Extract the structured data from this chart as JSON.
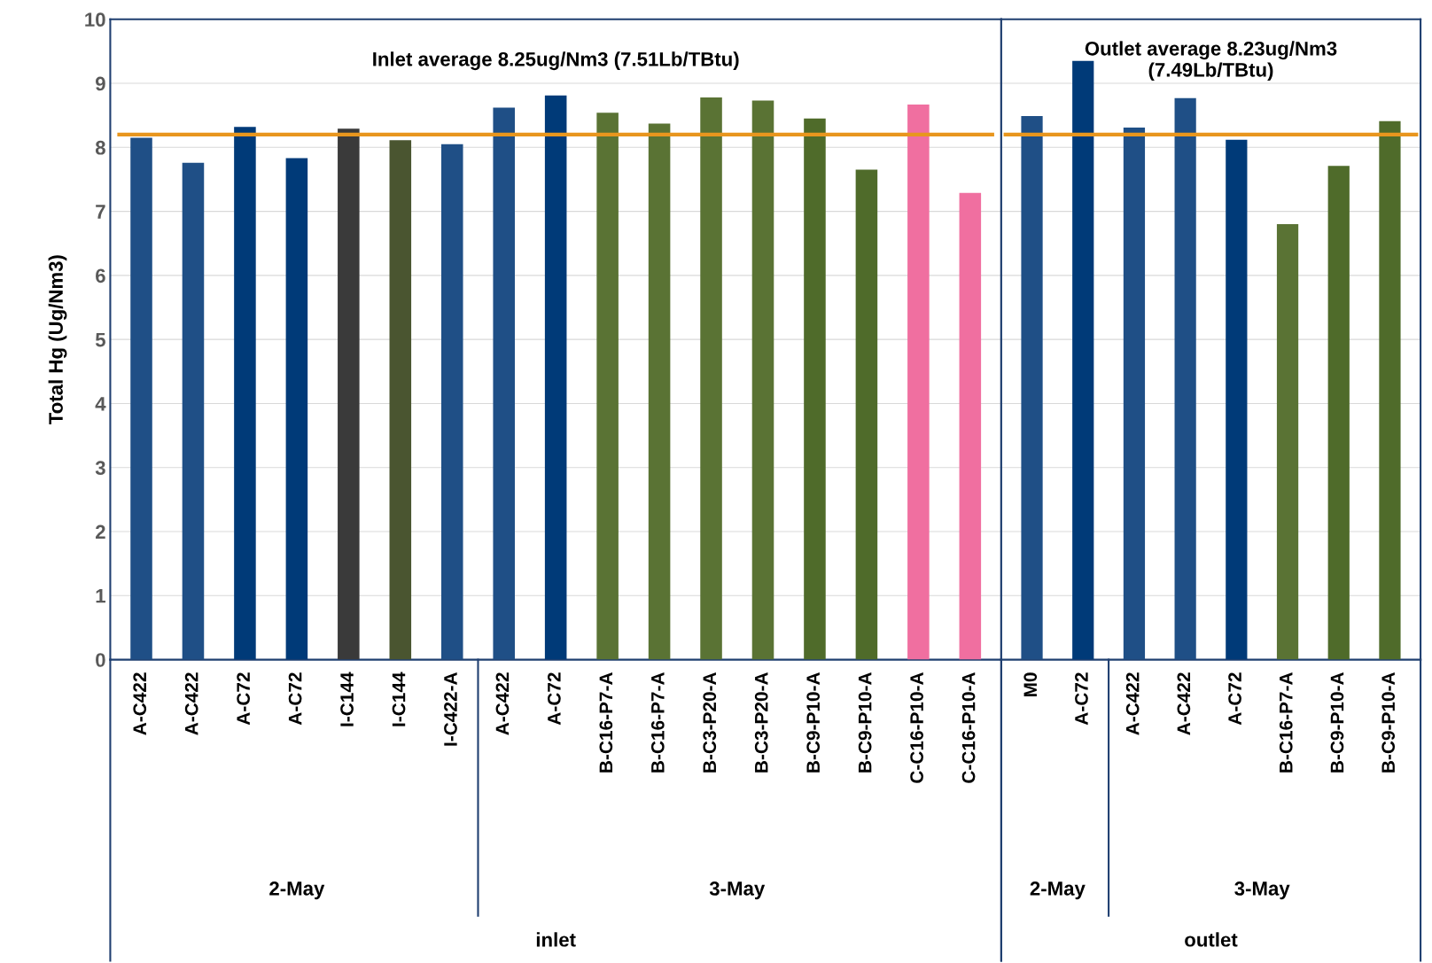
{
  "chart_data": [
    {
      "type": "bar",
      "ylabel": "Total Hg (Ug/Nm3)",
      "categories": [
        "A-C422",
        "A-C422",
        "A-C72",
        "A-C72",
        "I-C144",
        "I-C144",
        "I-C422-A",
        "A-C422",
        "A-C72",
        "B-C16-P7-A",
        "B-C16-P7-A",
        "B-C3-P20-A",
        "B-C3-P20-A",
        "B-C9-P10-A",
        "B-C9-P10-A",
        "C-C16-P10-A",
        "C-C16-P10-A"
      ],
      "values": [
        8.15,
        7.76,
        8.32,
        7.83,
        8.29,
        8.11,
        8.05,
        8.62,
        8.81,
        8.54,
        8.37,
        8.78,
        8.73,
        8.45,
        7.65,
        8.67,
        7.29
      ],
      "colors": [
        "#1f4f86",
        "#1f4f86",
        "#003a78",
        "#003a78",
        "#3a3a3a",
        "#4a5530",
        "#1f4f86",
        "#1f4f86",
        "#003a78",
        "#5a7334",
        "#5a7334",
        "#5a7334",
        "#5a7334",
        "#4f6b2a",
        "#4f6b2a",
        "#f06fa0",
        "#f06fa0"
      ],
      "ylim": [
        0,
        10
      ],
      "yticks": [
        0,
        1,
        2,
        3,
        4,
        5,
        6,
        7,
        8,
        9,
        10
      ],
      "grid": "y",
      "ref_lines": [
        {
          "axis": "y",
          "value": 8.2,
          "color": "#e8961e"
        }
      ],
      "annotations": [
        "Inlet average 8.25ug/Nm3 (7.51Lb/TBtu)",
        "2-May",
        "3-May",
        "inlet"
      ]
    },
    {
      "type": "bar",
      "categories": [
        "M0",
        "A-C72",
        "A-C422",
        "A-C422",
        "A-C72",
        "B-C16-P7-A",
        "B-C9-P10-A",
        "B-C9-P10-A"
      ],
      "values": [
        8.49,
        9.35,
        8.31,
        8.77,
        8.12,
        6.8,
        7.71,
        8.41
      ],
      "colors": [
        "#1f4f86",
        "#003a78",
        "#1f4f86",
        "#1f4f86",
        "#003a78",
        "#5a7334",
        "#4f6b2a",
        "#4f6b2a"
      ],
      "ylim": [
        0,
        10
      ],
      "yticks": [
        0,
        1,
        2,
        3,
        4,
        5,
        6,
        7,
        8,
        9,
        10
      ],
      "grid": "y",
      "tick_labels": "x",
      "ref_lines": [
        {
          "axis": "y",
          "value": 8.2,
          "color": "#e8961e"
        }
      ],
      "annotations": [
        "Outlet average 8.23ug/Nm3\n(7.49Lb/TBtu)",
        "2-May",
        "3-May",
        "outlet"
      ]
    }
  ]
}
